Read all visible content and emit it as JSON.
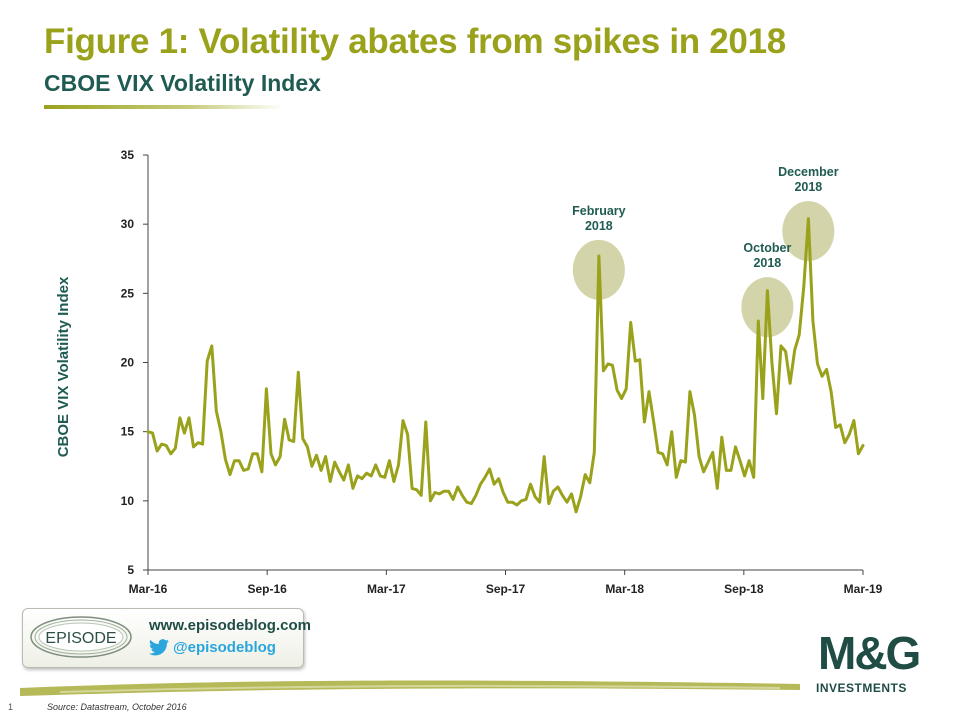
{
  "slide": {
    "title": "Figure 1: Volatility abates from spikes in 2018",
    "subtitle": "CBOE VIX Volatility Index",
    "page_number": "1",
    "source": "Source: Datastream, October 2016"
  },
  "badge": {
    "logo_text": "EPISODE",
    "url": "www.episodeblog.com",
    "twitter": "@episodeblog",
    "icon": "twitter-bird-icon"
  },
  "brand": {
    "name": "M&G",
    "sub": "INVESTMENTS"
  },
  "colors": {
    "title": "#9aa21b",
    "subtitle": "#1f5b52",
    "line": "#9aa21b",
    "highlight": "#c5c68f",
    "brand": "#1f4d45"
  },
  "chart_data": {
    "type": "line",
    "ylabel": "CBOE VIX Volatility Index",
    "xlabel": "",
    "ylim": [
      5,
      35
    ],
    "yticks": [
      5,
      10,
      15,
      20,
      25,
      30,
      35
    ],
    "x_tick_labels": [
      "Mar-16",
      "Sep-16",
      "Mar-17",
      "Sep-17",
      "Mar-18",
      "Sep-18",
      "Mar-19"
    ],
    "grid": false,
    "series": [
      {
        "values": [
          15.0,
          14.9,
          13.6,
          14.1,
          14.0,
          13.4,
          13.8,
          16.0,
          14.9,
          16.0,
          13.9,
          14.2,
          14.1,
          20.1,
          21.2,
          16.5,
          15.0,
          13.0,
          11.9,
          12.9,
          12.9,
          12.2,
          12.3,
          13.4,
          13.4,
          12.1,
          18.1,
          13.4,
          12.6,
          13.2,
          15.9,
          14.4,
          14.3,
          19.3,
          14.5,
          13.9,
          12.5,
          13.3,
          12.2,
          13.2,
          11.4,
          12.8,
          12.1,
          11.5,
          12.6,
          10.9,
          11.8,
          11.6,
          12.0,
          11.8,
          12.6,
          11.8,
          11.7,
          12.9,
          11.4,
          12.6,
          15.8,
          14.8,
          10.9,
          10.8,
          10.4,
          15.7,
          10.0,
          10.6,
          10.5,
          10.7,
          10.7,
          10.1,
          11.0,
          10.4,
          9.9,
          9.8,
          10.4,
          11.2,
          11.7,
          12.3,
          11.2,
          11.6,
          10.6,
          9.9,
          9.9,
          9.7,
          10.0,
          10.1,
          11.2,
          10.3,
          9.9,
          13.2,
          9.8,
          10.7,
          11.0,
          10.4,
          9.9,
          10.5,
          9.2,
          10.3,
          11.9,
          11.3,
          13.5,
          27.7,
          19.4,
          19.9,
          19.8,
          18.0,
          17.4,
          18.1,
          22.9,
          20.1,
          20.2,
          15.7,
          17.9,
          15.8,
          13.5,
          13.4,
          12.6,
          15.0,
          11.7,
          12.9,
          12.8,
          17.9,
          16.2,
          13.2,
          12.1,
          12.8,
          13.5,
          10.9,
          14.6,
          12.2,
          12.2,
          13.9,
          12.9,
          11.8,
          12.9,
          11.7,
          23.0,
          17.4,
          25.2,
          20.0,
          16.3,
          21.2,
          20.8,
          18.5,
          20.9,
          22.0,
          25.5,
          30.4,
          23.0,
          19.9,
          19.0,
          19.5,
          17.9,
          15.3,
          15.5,
          14.2,
          14.8,
          15.8,
          13.4,
          14.0
        ]
      }
    ],
    "annotations": [
      {
        "label": "February\n2018",
        "index": 99,
        "value": 26.7
      },
      {
        "label": "October\n2018",
        "index": 136,
        "value": 24.0
      },
      {
        "label": "December\n2018",
        "index": 145,
        "value": 29.5
      }
    ]
  }
}
